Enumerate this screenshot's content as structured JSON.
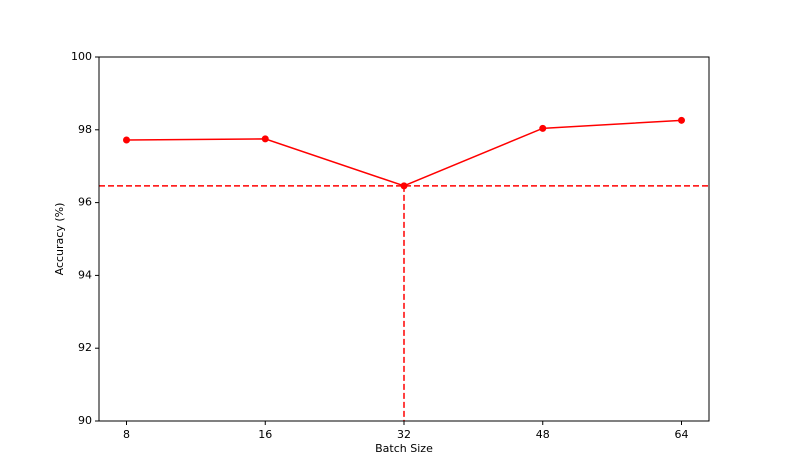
{
  "chart_data": {
    "type": "line",
    "xlabel": "Batch Size",
    "ylabel": "Accuracy (%)",
    "categories": [
      "8",
      "16",
      "32",
      "48",
      "64"
    ],
    "series": [
      {
        "color": "#ff0000",
        "values": [
          97.72,
          97.75,
          96.46,
          98.04,
          98.26
        ]
      }
    ],
    "ylim": [
      90,
      100
    ],
    "yticks": [
      90,
      92,
      94,
      96,
      98,
      100
    ],
    "hline": 96.46,
    "vline": "32",
    "reference_color": "#ff0000"
  }
}
